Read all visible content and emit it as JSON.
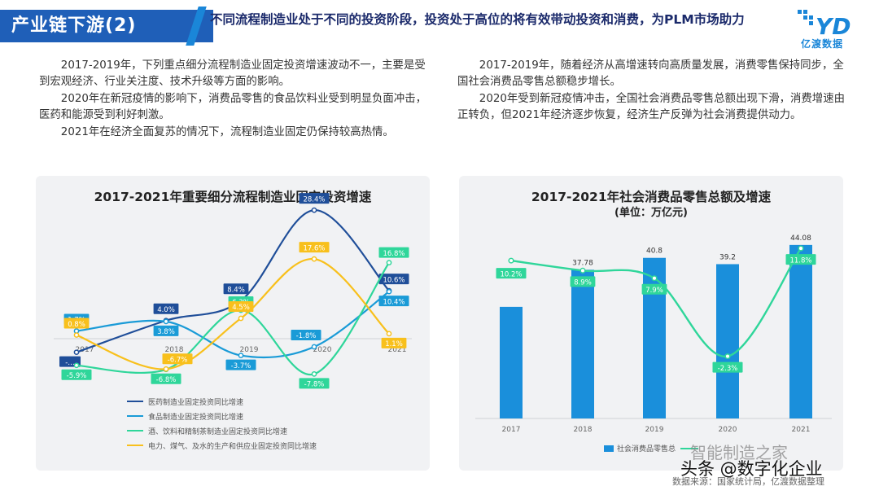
{
  "header": {
    "tag": "产业链下游(2)",
    "headline": "不同流程制造业处于不同的投资阶段，投资处于高位的将有效带动投资和消费，为PLM市场助力",
    "logo_text": "亿渡数据"
  },
  "left_text": [
    "2017-2019年，下列重点细分流程制造业固定投资增速波动不一，主要是受到宏观经济、行业关注度、技术升级等方面的影响。",
    "2020年在新冠疫情的影响下，消费品零售的食品饮料业受到明显负面冲击，医药和能源受到利好刺激。",
    "2021年在经济全面复苏的情况下，流程制造业固定仍保持较高热情。"
  ],
  "right_text": [
    "2017-2019年，随着经济从高增速转向高质量发展，消费零售保持同步，全国社会消费品零售总额稳步增长。",
    "2020年受到新冠疫情冲击，全国社会消费品零售总额出现下滑，消费增速由正转负，但2021年经济逐步恢复，经济生产反弹为社会消费提供动力。"
  ],
  "chart_data": [
    {
      "type": "line",
      "title": "2017-2021年重要细分流程制造业固定投资增速",
      "categories": [
        "2017",
        "2018",
        "2019",
        "2020",
        "2021"
      ],
      "series": [
        {
          "name": "医药制造业固定投资同比增速",
          "color": "#1f4e99",
          "values": [
            -3.0,
            4.0,
            8.4,
            28.4,
            10.6
          ],
          "labels": [
            "-…",
            "4.0%",
            "8.4%",
            "28.4%",
            "10.6%"
          ]
        },
        {
          "name": "食品制造业固定投资同比增速",
          "color": "#1a9bd7",
          "values": [
            1.7,
            3.8,
            -3.7,
            -1.8,
            10.4
          ],
          "labels": [
            "1.7%",
            "3.8%",
            "-3.7%",
            "-1.8%",
            "10.4%"
          ]
        },
        {
          "name": "酒、饮料和精制茶制造业固定投资同比增速",
          "color": "#2fd69a",
          "values": [
            -5.9,
            -6.8,
            6.3,
            -7.8,
            16.8
          ],
          "labels": [
            "-5.9%",
            "-6.8%",
            "6.3%",
            "-7.8%",
            "16.8%"
          ]
        },
        {
          "name": "电力、煤气、及水的生产和供应业固定投资同比增速",
          "color": "#f8c01c",
          "values": [
            0.8,
            -6.7,
            4.5,
            17.6,
            1.1
          ],
          "labels": [
            "0.8%",
            "-6.7%",
            "4.5%",
            "17.6%",
            "1.1%"
          ]
        }
      ]
    },
    {
      "type": "bar",
      "title": "2017-2021年社会消费品零售总额及增速",
      "subtitle": "(单位：万亿元)",
      "categories": [
        "2017",
        "2018",
        "2019",
        "2020",
        "2021"
      ],
      "bar_series": {
        "name": "社会消费品零售总",
        "color": "#1a8fdb",
        "values": [
          36.63,
          37.78,
          40.8,
          39.2,
          44.08
        ],
        "labels": [
          "",
          "37.78",
          "40.8",
          "39.2",
          "44.08"
        ]
      },
      "line_series": {
        "name": "",
        "color": "#2fd69a",
        "values": [
          10.2,
          8.9,
          7.9,
          -2.3,
          11.8
        ],
        "labels": [
          "10.2%",
          "8.9%",
          "7.9%",
          "-2.3%",
          "11.8%"
        ]
      }
    }
  ],
  "source_text": "数据来源：国家统计局，亿渡数据整理",
  "watermark1": "智能制造之家",
  "watermark2": "头条 @数字化企业"
}
